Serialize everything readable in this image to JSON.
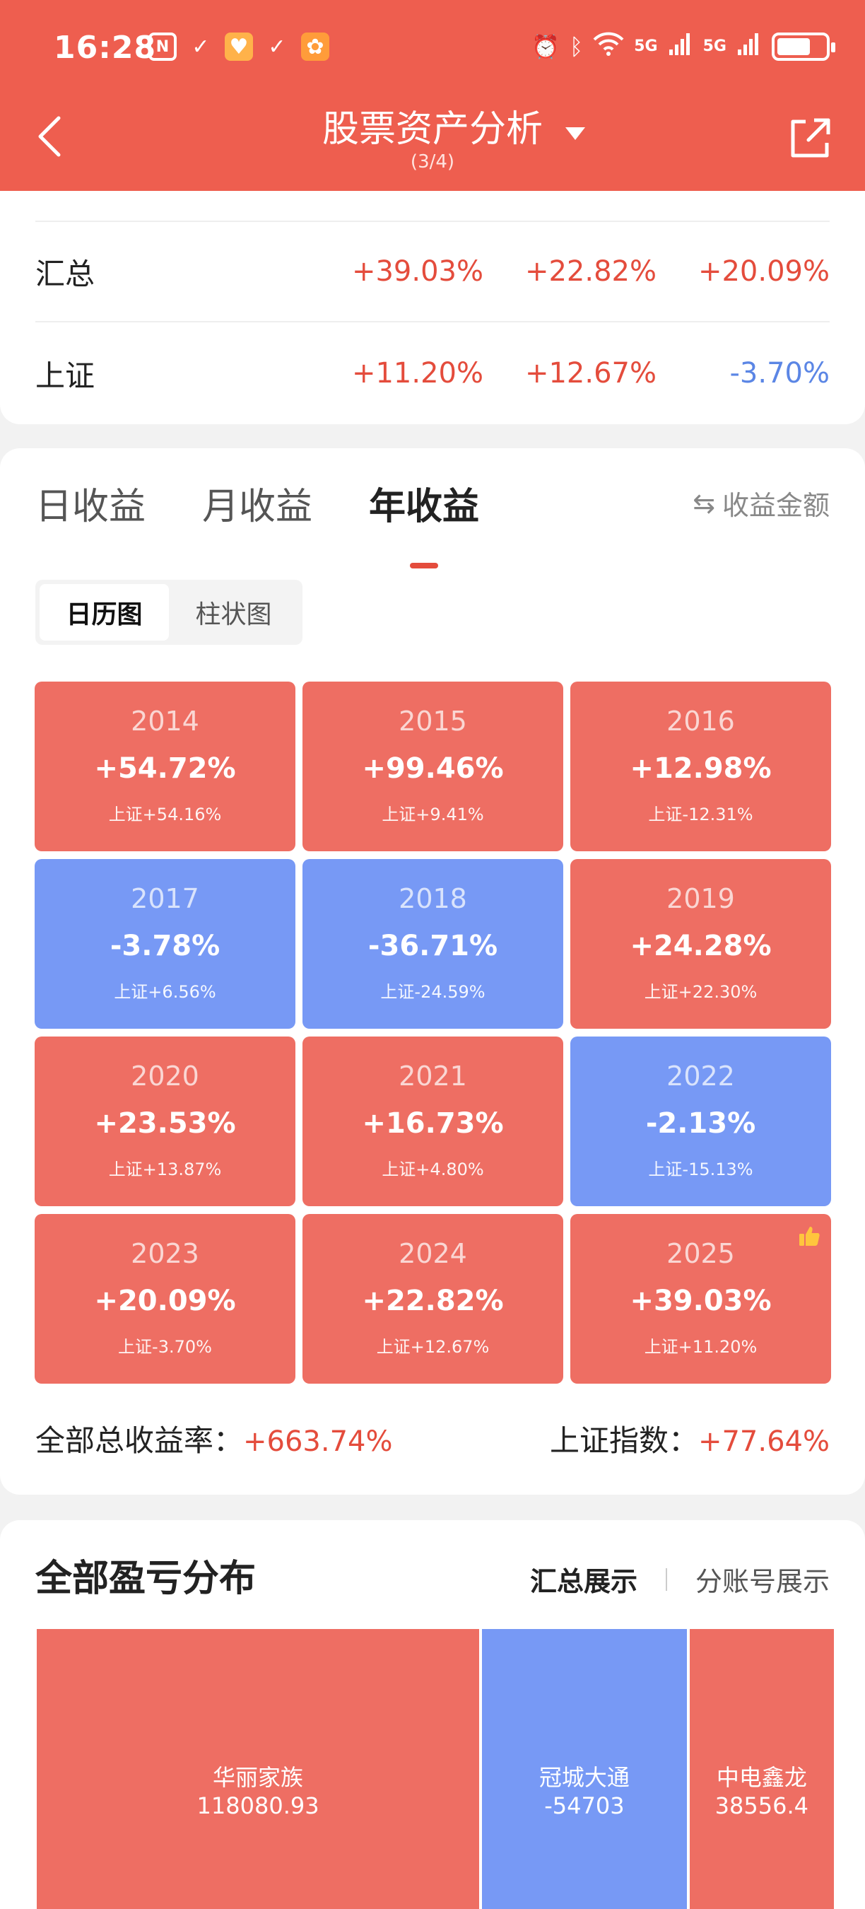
{
  "status_bar": {
    "time": "16:28",
    "network_1": "5G",
    "network_2": "5G"
  },
  "header": {
    "title": "股票资产分析",
    "page_indicator": "(3/4)"
  },
  "summary": {
    "rows": [
      {
        "label": "汇总",
        "values": [
          "+39.03%",
          "+22.82%",
          "+20.09%"
        ]
      },
      {
        "label": "上证",
        "values": [
          "+11.20%",
          "+12.67%",
          "-3.70%"
        ]
      }
    ]
  },
  "returns": {
    "tabs": [
      "日收益",
      "月收益",
      "年收益"
    ],
    "active_tab": "年收益",
    "amount_toggle": "收益金额",
    "view_modes": [
      "日历图",
      "柱状图"
    ],
    "active_view": "日历图",
    "years": [
      {
        "year": "2014",
        "return": "+54.72%",
        "benchmark": "上证+54.16%",
        "direction": "up"
      },
      {
        "year": "2015",
        "return": "+99.46%",
        "benchmark": "上证+9.41%",
        "direction": "up"
      },
      {
        "year": "2016",
        "return": "+12.98%",
        "benchmark": "上证-12.31%",
        "direction": "up"
      },
      {
        "year": "2017",
        "return": "-3.78%",
        "benchmark": "上证+6.56%",
        "direction": "down"
      },
      {
        "year": "2018",
        "return": "-36.71%",
        "benchmark": "上证-24.59%",
        "direction": "down"
      },
      {
        "year": "2019",
        "return": "+24.28%",
        "benchmark": "上证+22.30%",
        "direction": "up"
      },
      {
        "year": "2020",
        "return": "+23.53%",
        "benchmark": "上证+13.87%",
        "direction": "up"
      },
      {
        "year": "2021",
        "return": "+16.73%",
        "benchmark": "上证+4.80%",
        "direction": "up"
      },
      {
        "year": "2022",
        "return": "-2.13%",
        "benchmark": "上证-15.13%",
        "direction": "down"
      },
      {
        "year": "2023",
        "return": "+20.09%",
        "benchmark": "上证-3.70%",
        "direction": "up"
      },
      {
        "year": "2024",
        "return": "+22.82%",
        "benchmark": "上证+12.67%",
        "direction": "up"
      },
      {
        "year": "2025",
        "return": "+39.03%",
        "benchmark": "上证+11.20%",
        "direction": "up",
        "badge": "thumbs-up-icon"
      }
    ],
    "total_label": "全部总收益率：",
    "total_value": "+663.74%",
    "index_label": "上证指数：",
    "index_value": "+77.64%"
  },
  "distribution": {
    "title": "全部盈亏分布",
    "tabs": [
      "汇总展示",
      "分账号展示"
    ],
    "active_tab": "汇总展示",
    "items": [
      {
        "name": "华丽家族",
        "value": "118080.93",
        "share": 0.573
      },
      {
        "name": "冠城大通",
        "value": "-54703",
        "share": 0.265
      },
      {
        "name": "中电鑫龙",
        "value": "38556.4",
        "share": 0.187
      }
    ]
  },
  "colors": {
    "header_bg": "#ee5e4f",
    "gain": "#ee6e63",
    "loss": "#7799f5",
    "gain_text": "#e44c3c",
    "loss_text": "#5b86e5"
  }
}
